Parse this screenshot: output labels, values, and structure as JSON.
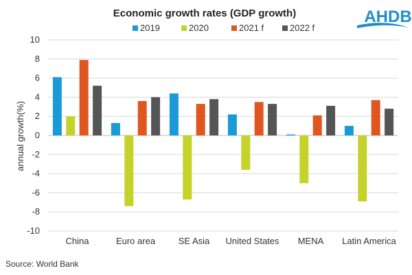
{
  "logo": {
    "text": "AHDB",
    "color": "#1e8fc8"
  },
  "source": "Source: World Bank",
  "chart_data": {
    "type": "bar",
    "title": "Economic growth rates (GDP growth)",
    "xlabel": "",
    "ylabel": "annual growth(%)",
    "ylim": [
      -10,
      10
    ],
    "yticks": [
      10,
      8,
      6,
      4,
      2,
      0,
      -2,
      -4,
      -6,
      -8,
      -10
    ],
    "grid": true,
    "legend_position": "top",
    "categories": [
      "China",
      "Euro area",
      "SE Asia",
      "United States",
      "MENA",
      "Latin America"
    ],
    "series": [
      {
        "name": "2019",
        "color": "#1a9bd7",
        "values": [
          6.1,
          1.3,
          4.4,
          2.2,
          0.1,
          1.0
        ]
      },
      {
        "name": "2020",
        "color": "#c5d22a",
        "values": [
          2.0,
          -7.4,
          -6.7,
          -3.6,
          -5.0,
          -6.9
        ]
      },
      {
        "name": "2021 f",
        "color": "#e0561f",
        "values": [
          7.9,
          3.6,
          3.3,
          3.5,
          2.1,
          3.7
        ]
      },
      {
        "name": "2022 f",
        "color": "#555555",
        "values": [
          5.2,
          4.0,
          3.8,
          3.3,
          3.1,
          2.8
        ]
      }
    ]
  }
}
